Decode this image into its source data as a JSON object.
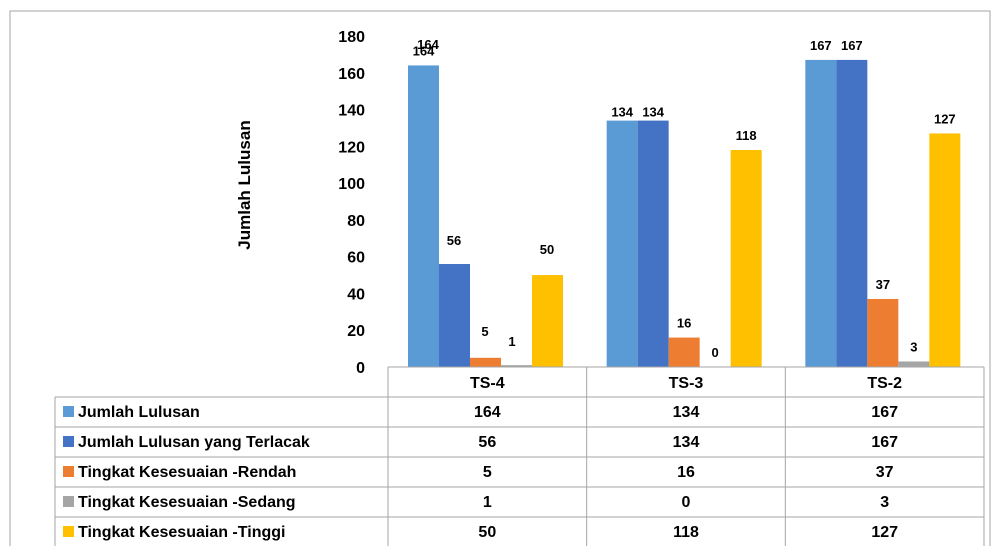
{
  "chart_data": {
    "type": "bar",
    "ylabel": "Jumlah Lulusan",
    "ylim": [
      0,
      180
    ],
    "yticks": [
      0,
      20,
      40,
      60,
      80,
      100,
      120,
      140,
      160,
      180
    ],
    "categories": [
      "TS-4",
      "TS-3",
      "TS-2"
    ],
    "grid": false,
    "legend": "data-table",
    "series": [
      {
        "name": "Jumlah Lulusan",
        "color": "#5B9BD5",
        "values": [
          164,
          134,
          167
        ]
      },
      {
        "name": "Jumlah Lulusan yang Terlacak",
        "color": "#4472C4",
        "values": [
          56,
          134,
          167
        ]
      },
      {
        "name": "Tingkat Kesesuaian -Rendah",
        "color": "#ED7D31",
        "values": [
          5,
          16,
          37
        ]
      },
      {
        "name": "Tingkat Kesesuaian -Sedang",
        "color": "#A5A5A5",
        "values": [
          1,
          0,
          3
        ]
      },
      {
        "name": "Tingkat Kesesuaian -Tinggi",
        "color": "#FFC000",
        "values": [
          50,
          118,
          127
        ]
      }
    ],
    "data_labels": [
      [
        "164",
        "",
        "",
        "",
        ""
      ],
      [
        "134",
        "134",
        "16",
        "0",
        "118"
      ],
      [
        "167",
        "167",
        "37",
        "3",
        "127"
      ]
    ]
  }
}
